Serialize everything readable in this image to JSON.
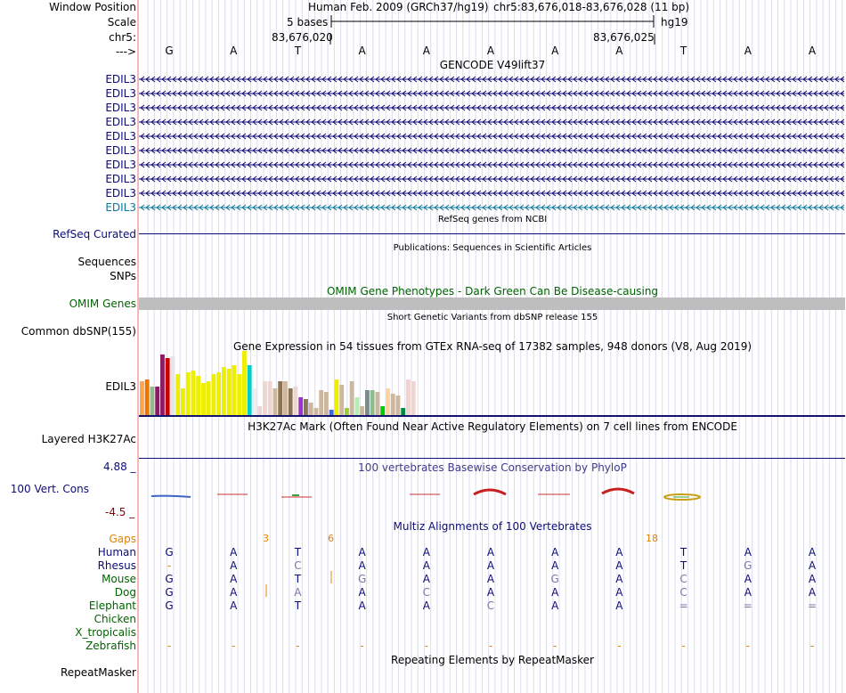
{
  "header": {
    "window_position_label": "Window Position",
    "scale_label": "Scale",
    "chrom_label": "chr5:",
    "strand_label": "--->",
    "assembly_title": "Human Feb. 2009 (GRCh37/hg19)",
    "position_range": "chr5:83,676,018-83,676,028 (11 bp)",
    "scale_text": "5 bases",
    "scale_db": "hg19",
    "coord_left": "83,676,020",
    "coord_right": "83,676,025"
  },
  "sequence": [
    "G",
    "A",
    "T",
    "A",
    "A",
    "A",
    "A",
    "A",
    "T",
    "A",
    "A"
  ],
  "gencode": {
    "title": "GENCODE V49lift37",
    "transcripts": [
      "EDIL3",
      "EDIL3",
      "EDIL3",
      "EDIL3",
      "EDIL3",
      "EDIL3",
      "EDIL3",
      "EDIL3",
      "EDIL3",
      "EDIL3"
    ]
  },
  "refseq": {
    "title": "RefSeq genes from NCBI",
    "label": "RefSeq Curated"
  },
  "publications": {
    "title": "Publications: Sequences in Scientific Articles",
    "label_sequences": "Sequences",
    "label_snps": "SNPs"
  },
  "omim": {
    "title": "OMIM Gene Phenotypes - Dark Green Can Be Disease-causing",
    "label": "OMIM Genes"
  },
  "dbsnp": {
    "title": "Short Genetic Variants from dbSNP release 155",
    "label": "Common dbSNP(155)"
  },
  "gtex": {
    "title": "Gene Expression in 54 tissues from GTEx RNA-seq of 17382 samples, 948 donors (V8, Aug 2019)",
    "label": "EDIL3",
    "values": [
      38,
      40,
      32,
      32,
      68,
      64,
      66,
      46,
      30,
      48,
      50,
      44,
      36,
      38,
      46,
      48,
      54,
      52,
      56,
      46,
      72,
      56,
      30,
      10,
      38,
      38,
      30,
      38,
      38,
      30,
      32,
      20,
      18,
      14,
      8,
      28,
      26,
      6,
      40,
      34,
      8,
      38,
      20,
      10,
      28,
      28,
      26,
      10,
      30,
      24,
      22,
      8,
      40,
      38
    ],
    "colors": [
      "#ffa54f",
      "#ee7600",
      "#8fbc8f",
      "#8b1c62",
      "#8b1c62",
      "#cd0000",
      "#e5e5e5",
      "#eeee00",
      "#eeee00",
      "#eeee00",
      "#eeee00",
      "#eeee00",
      "#eeee00",
      "#eeee00",
      "#eeee00",
      "#eeee00",
      "#eeee00",
      "#eeee00",
      "#eeee00",
      "#eeee00",
      "#eeee00",
      "#00cdcd",
      "#eeeeee",
      "#eed5d2",
      "#eed5d2",
      "#eed5d2",
      "#cdb79e",
      "#8b7355",
      "#cdb79e",
      "#8b7355",
      "#eed5d2",
      "#9a32cd",
      "#8b7355",
      "#cdb79e",
      "#cdb79e",
      "#cdb79e",
      "#cdb79e",
      "#4169e1",
      "#eeee00",
      "#cdb79e",
      "#9acd32",
      "#cdb79e",
      "#b4eeb4",
      "#cdb79e",
      "#7a8b8b",
      "#8fbc8f",
      "#cdb79e",
      "#00cd00",
      "#ffd39b",
      "#cdb79e",
      "#cdb79e",
      "#008b45",
      "#eed5d2",
      "#eed5d2"
    ]
  },
  "h3k27ac": {
    "title": "H3K27Ac Mark (Often Found Near Active Regulatory Elements) on 7 cell lines from ENCODE",
    "label": "Layered H3K27Ac"
  },
  "conservation": {
    "title": "100 vertebrates Basewise Conservation by PhyloP",
    "label": "100 Vert. Cons",
    "max_label": "4.88 _",
    "min_label": "-4.5 _"
  },
  "multiz": {
    "title": "Multiz Alignments of 100 Vertebrates",
    "gaps_label": "Gaps",
    "gap_counts": [
      "3",
      "6",
      "18"
    ],
    "species": [
      {
        "name": "Human",
        "bases": [
          "G",
          "A",
          "T",
          "A",
          "A",
          "A",
          "A",
          "A",
          "T",
          "A",
          "A"
        ]
      },
      {
        "name": "Rhesus",
        "bases": [
          "-",
          "A",
          "C",
          "A",
          "A",
          "A",
          "A",
          "A",
          "T",
          "G",
          "A"
        ]
      },
      {
        "name": "Mouse",
        "bases": [
          "G",
          "A",
          "T",
          "G",
          "A",
          "A",
          "G",
          "A",
          "C",
          "A",
          "A"
        ]
      },
      {
        "name": "Dog",
        "bases": [
          "G",
          "A",
          "A",
          "A",
          "C",
          "A",
          "A",
          "A",
          "C",
          "A",
          "A"
        ]
      },
      {
        "name": "Elephant",
        "bases": [
          "G",
          "A",
          "T",
          "A",
          "A",
          "C",
          "A",
          "A",
          "=",
          "=",
          "="
        ]
      },
      {
        "name": "Chicken",
        "bases": []
      },
      {
        "name": "X_tropicalis",
        "bases": []
      },
      {
        "name": "Zebrafish",
        "bases": [
          "-",
          "-",
          "-",
          "-",
          "-",
          "-",
          "-",
          "-",
          "-",
          "-",
          "-"
        ]
      }
    ]
  },
  "repeatmasker": {
    "title": "Repeating Elements by RepeatMasker",
    "label": "RepeatMasker"
  },
  "colors": {
    "gene_navy": "#0c0c78",
    "gene_teal": "#0a789b",
    "omim_green": "#006400",
    "gaps_orange": "#e68200",
    "cons_red": "#8b0000",
    "species_green": "#006400",
    "species_navy": "#0c0c78",
    "mismatch": "#7878aa"
  }
}
